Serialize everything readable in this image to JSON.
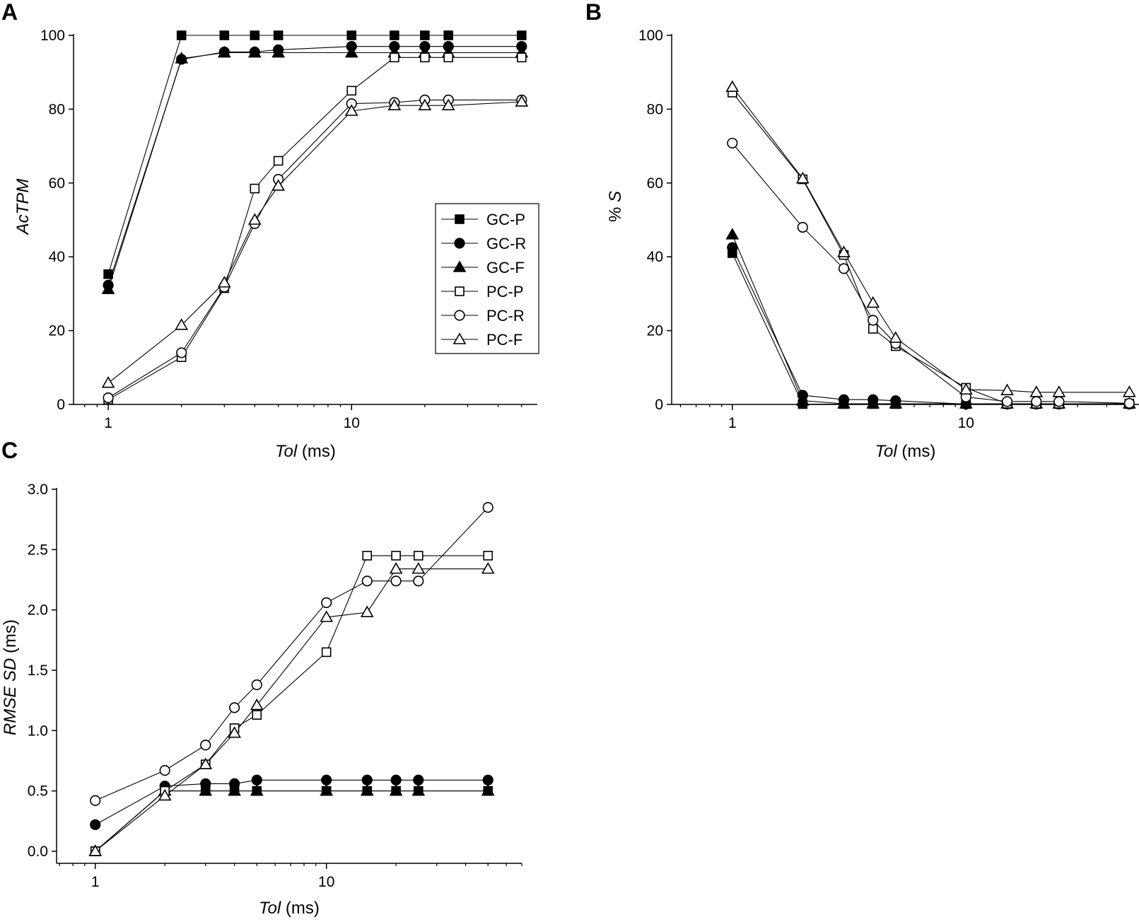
{
  "figure": {
    "colors": {
      "foreground": "#000000",
      "background": "#ffffff"
    }
  },
  "chart_data": [
    {
      "panel": "A",
      "type": "line",
      "xscale": "log",
      "xlim": [
        0.72,
        58
      ],
      "ylim": [
        0,
        100
      ],
      "xticks": [
        1,
        10
      ],
      "xtick_labels": [
        "1",
        "10"
      ],
      "yticks": [
        0,
        20,
        40,
        60,
        80,
        100
      ],
      "ytick_labels": [
        "0",
        "20",
        "40",
        "60",
        "80",
        "100"
      ],
      "xlabel_italic": "Tol",
      "xlabel_rest": " (ms)",
      "ylabel_italic": "AcTPM",
      "ylabel_rest": "",
      "legend": {
        "position": "center-right"
      },
      "x": [
        1,
        2,
        3,
        4,
        5,
        10,
        15,
        20,
        25,
        50
      ],
      "series": [
        {
          "name": "GC-P",
          "marker": "square",
          "filled": true,
          "values": [
            35.3,
            100,
            100,
            100,
            100,
            100,
            100,
            100,
            100,
            100
          ]
        },
        {
          "name": "GC-R",
          "marker": "circle",
          "filled": true,
          "values": [
            32.3,
            93.5,
            95.5,
            95.5,
            96.1,
            97,
            97,
            97,
            97,
            97
          ]
        },
        {
          "name": "GC-F",
          "marker": "triangle",
          "filled": true,
          "values": [
            31.2,
            93.7,
            95.3,
            95.3,
            95.3,
            95.3,
            95.3,
            95.3,
            95.3,
            95.3
          ]
        },
        {
          "name": "PC-P",
          "marker": "square",
          "filled": false,
          "values": [
            1.3,
            12.8,
            31.5,
            58.5,
            66,
            85,
            94,
            94,
            94,
            94
          ]
        },
        {
          "name": "PC-R",
          "marker": "circle",
          "filled": false,
          "values": [
            1.8,
            14,
            31.8,
            49,
            61,
            81.5,
            81.8,
            82.5,
            82.5,
            82.5
          ]
        },
        {
          "name": "PC-F",
          "marker": "triangle",
          "filled": false,
          "values": [
            5.8,
            21.5,
            33,
            50,
            59.2,
            79.5,
            81,
            81,
            81,
            82
          ]
        }
      ]
    },
    {
      "panel": "B",
      "type": "line",
      "xscale": "log",
      "xlim": [
        0.55,
        55
      ],
      "ylim": [
        0,
        100
      ],
      "xticks": [
        1,
        10
      ],
      "xtick_labels": [
        "1",
        "10"
      ],
      "yticks": [
        0,
        20,
        40,
        60,
        80,
        100
      ],
      "ytick_labels": [
        "0",
        "20",
        "40",
        "60",
        "80",
        "100"
      ],
      "xlabel_italic": "Tol",
      "xlabel_rest": " (ms)",
      "ylabel_italic": "S",
      "ylabel_prefix": "% ",
      "x": [
        1,
        2,
        3,
        4,
        5,
        10,
        15,
        20,
        25,
        50
      ],
      "series": [
        {
          "name": "GC-P",
          "marker": "square",
          "filled": true,
          "values": [
            41,
            0.1,
            0.1,
            0.1,
            0.1,
            0.1,
            0.1,
            0.1,
            0.1,
            0.1
          ]
        },
        {
          "name": "GC-R",
          "marker": "circle",
          "filled": true,
          "values": [
            42.5,
            2.5,
            1.3,
            1.3,
            1,
            0.1,
            0.1,
            0.1,
            0.1,
            0.1
          ]
        },
        {
          "name": "GC-F",
          "marker": "triangle",
          "filled": true,
          "values": [
            46,
            1,
            0.2,
            0.2,
            0.2,
            0.2,
            0.2,
            0.2,
            0.2,
            0.2
          ]
        },
        {
          "name": "PC-P",
          "marker": "square",
          "filled": false,
          "values": [
            84.5,
            61,
            40.5,
            20.5,
            15.8,
            4.5,
            0.2,
            0.2,
            0.2,
            0.2
          ]
        },
        {
          "name": "PC-R",
          "marker": "circle",
          "filled": false,
          "values": [
            70.8,
            48,
            36.8,
            22.8,
            16.5,
            2,
            0.8,
            0.8,
            0.8,
            0.3
          ]
        },
        {
          "name": "PC-F",
          "marker": "triangle",
          "filled": false,
          "values": [
            86,
            61.2,
            41.2,
            27.5,
            18,
            4,
            3.8,
            3.3,
            3.3,
            3.3
          ]
        }
      ]
    },
    {
      "panel": "C",
      "type": "line",
      "xscale": "log",
      "xlim": [
        0.68,
        70
      ],
      "ylim": [
        -0.1,
        3.0
      ],
      "xticks": [
        1,
        10
      ],
      "xtick_labels": [
        "1",
        "10"
      ],
      "yticks": [
        0,
        0.5,
        1.0,
        1.5,
        2.0,
        2.5,
        3.0
      ],
      "ytick_labels": [
        "0.0",
        "0.5",
        "1.0",
        "1.5",
        "2.0",
        "2.5",
        "3.0"
      ],
      "xlabel_italic": "Tol",
      "xlabel_rest": " (ms)",
      "ylabel_italic": "RMSE SD",
      "ylabel_rest": " (ms)",
      "x": [
        1,
        2,
        3,
        4,
        5,
        10,
        15,
        20,
        25,
        50
      ],
      "series": [
        {
          "name": "GC-P",
          "marker": "square",
          "filled": true,
          "values": [
            0,
            0.5,
            0.5,
            0.5,
            0.5,
            0.5,
            0.5,
            0.5,
            0.5,
            0.5
          ]
        },
        {
          "name": "GC-R",
          "marker": "circle",
          "filled": true,
          "values": [
            0.22,
            0.54,
            0.56,
            0.56,
            0.59,
            0.59,
            0.59,
            0.59,
            0.59,
            0.59
          ]
        },
        {
          "name": "GC-F",
          "marker": "triangle",
          "filled": true,
          "values": [
            0,
            0.5,
            0.5,
            0.5,
            0.5,
            0.5,
            0.5,
            0.5,
            0.5,
            0.5
          ]
        },
        {
          "name": "PC-P",
          "marker": "square",
          "filled": false,
          "values": [
            0,
            0.5,
            0.72,
            1.02,
            1.13,
            1.65,
            2.45,
            2.45,
            2.45,
            2.45
          ]
        },
        {
          "name": "PC-R",
          "marker": "circle",
          "filled": false,
          "values": [
            0.42,
            0.67,
            0.88,
            1.19,
            1.38,
            2.06,
            2.24,
            2.24,
            2.24,
            2.85
          ]
        },
        {
          "name": "PC-F",
          "marker": "triangle",
          "filled": false,
          "values": [
            0,
            0.46,
            0.72,
            0.98,
            1.21,
            1.94,
            1.98,
            2.34,
            2.34,
            2.34
          ]
        }
      ]
    }
  ]
}
